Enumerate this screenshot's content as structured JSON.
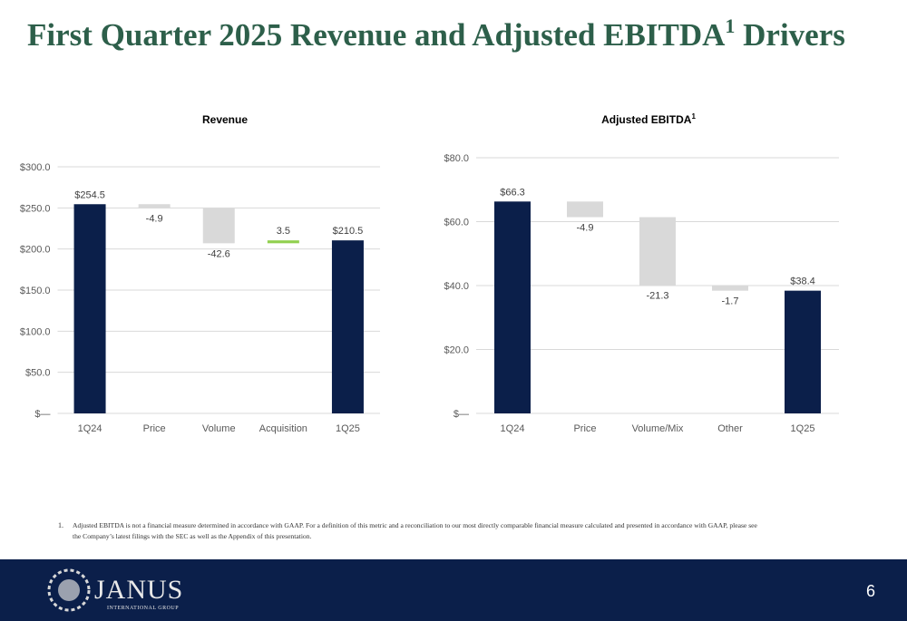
{
  "header": {
    "title": "First Quarter 2025 Revenue and Adjusted EBITDA",
    "title_sup": "1",
    "title_end": " Drivers"
  },
  "chart_data": [
    {
      "type": "waterfall",
      "title": "Revenue",
      "categories": [
        "1Q24",
        "Price",
        "Volume",
        "Acquisition",
        "1Q25"
      ],
      "values": [
        254.5,
        -4.9,
        -42.6,
        3.5,
        210.5
      ],
      "value_labels": [
        "$254.5",
        "-4.9",
        "-42.6",
        "3.5",
        "$210.5"
      ],
      "measure": [
        "total",
        "relative",
        "relative",
        "relative",
        "total"
      ],
      "colors": {
        "total": "#0b1f4a",
        "decrease": "#d9d9d9",
        "increase": "#92d050"
      },
      "ylim": [
        0,
        300
      ],
      "yticks": [
        {
          "value": 0,
          "label": "$—"
        },
        {
          "value": 50,
          "label": "$50.0"
        },
        {
          "value": 100,
          "label": "$100.0"
        },
        {
          "value": 150,
          "label": "$150.0"
        },
        {
          "value": 200,
          "label": "$200.0"
        },
        {
          "value": 250,
          "label": "$250.0"
        },
        {
          "value": 300,
          "label": "$300.0"
        }
      ],
      "grid": true
    },
    {
      "type": "waterfall",
      "title": "Adjusted EBITDA",
      "title_sup": "1",
      "categories": [
        "1Q24",
        "Price",
        "Volume/Mix",
        "Other",
        "1Q25"
      ],
      "values": [
        66.3,
        -4.9,
        -21.3,
        -1.7,
        38.4
      ],
      "value_labels": [
        "$66.3",
        "-4.9",
        "-21.3",
        "-1.7",
        "$38.4"
      ],
      "measure": [
        "total",
        "relative",
        "relative",
        "relative",
        "total"
      ],
      "colors": {
        "total": "#0b1f4a",
        "decrease": "#d9d9d9",
        "increase": "#92d050"
      },
      "ylim": [
        0,
        80
      ],
      "yticks": [
        {
          "value": 0,
          "label": "$—"
        },
        {
          "value": 20,
          "label": "$20.0"
        },
        {
          "value": 40,
          "label": "$40.0"
        },
        {
          "value": 60,
          "label": "$60.0"
        },
        {
          "value": 80,
          "label": "$80.0"
        }
      ],
      "grid": true
    }
  ],
  "footnote": {
    "number": "1.",
    "lines": [
      "Adjusted EBITDA is not a financial measure determined in accordance with GAAP. For a definition of this metric and a reconciliation to our most directly comparable financial measure calculated and presented in accordance with GAAP, please see",
      "the Company’s latest filings with the SEC as well as the Appendix of this presentation."
    ]
  },
  "footer": {
    "logo": "JANUS",
    "logo_sub": "INTERNATIONAL GROUP",
    "page": "6"
  }
}
